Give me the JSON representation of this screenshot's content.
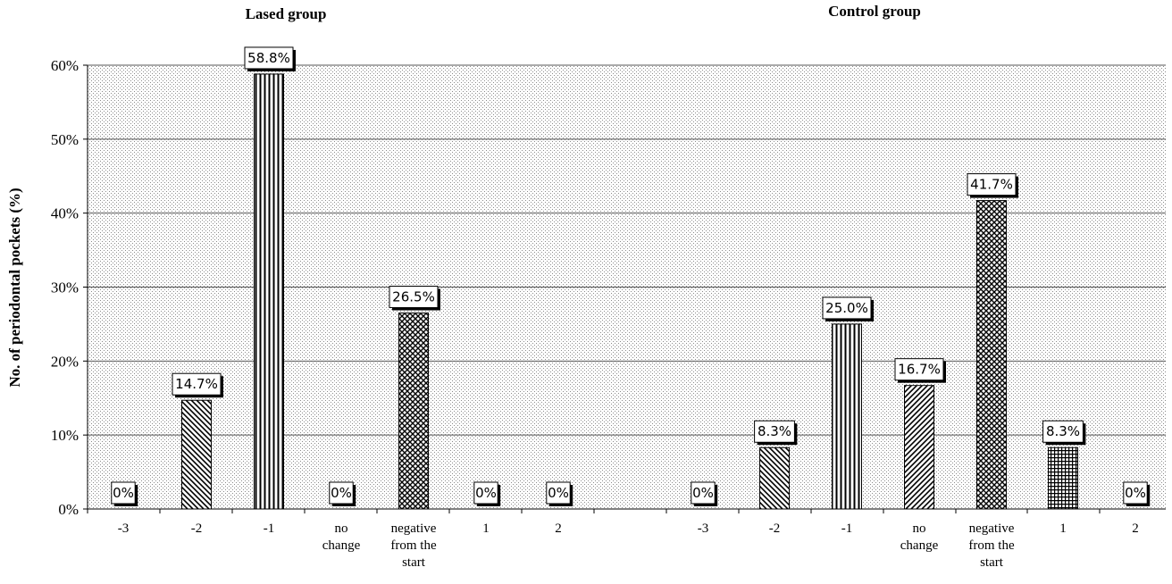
{
  "chart_data": {
    "type": "bar",
    "group_titles": [
      "Lased group",
      "Control group"
    ],
    "ylabel": "No. of periodontal pockets (%)",
    "ylim": [
      0,
      60
    ],
    "yticks": [
      "0%",
      "10%",
      "20%",
      "30%",
      "40%",
      "50%",
      "60%"
    ],
    "grid": true,
    "series": [
      {
        "group": "Lased group",
        "categories": [
          "-3",
          "-2",
          "-1",
          "no change",
          "negative from the start",
          "1",
          "2"
        ],
        "values": [
          0,
          14.7,
          58.8,
          0,
          26.5,
          0,
          0
        ],
        "labels": [
          "0%",
          "14.7%",
          "58.8%",
          "0%",
          "26.5%",
          "0%",
          "0%"
        ]
      },
      {
        "group": "Control group",
        "categories": [
          "-3",
          "-2",
          "-1",
          "no change",
          "negative from the start",
          "1",
          "2"
        ],
        "values": [
          0,
          8.3,
          25.0,
          16.7,
          41.7,
          8.3,
          0
        ],
        "labels": [
          "0%",
          "8.3%",
          "25.0%",
          "16.7%",
          "41.7%",
          "8.3%",
          "0%"
        ]
      }
    ],
    "category_patterns": [
      "none",
      "diagonal-back",
      "vertical",
      "none",
      "crosshatch",
      "none",
      "none"
    ],
    "control_patterns": [
      "none",
      "diagonal-back",
      "vertical",
      "diagonal-forward",
      "crosshatch",
      "grid",
      "none"
    ]
  }
}
